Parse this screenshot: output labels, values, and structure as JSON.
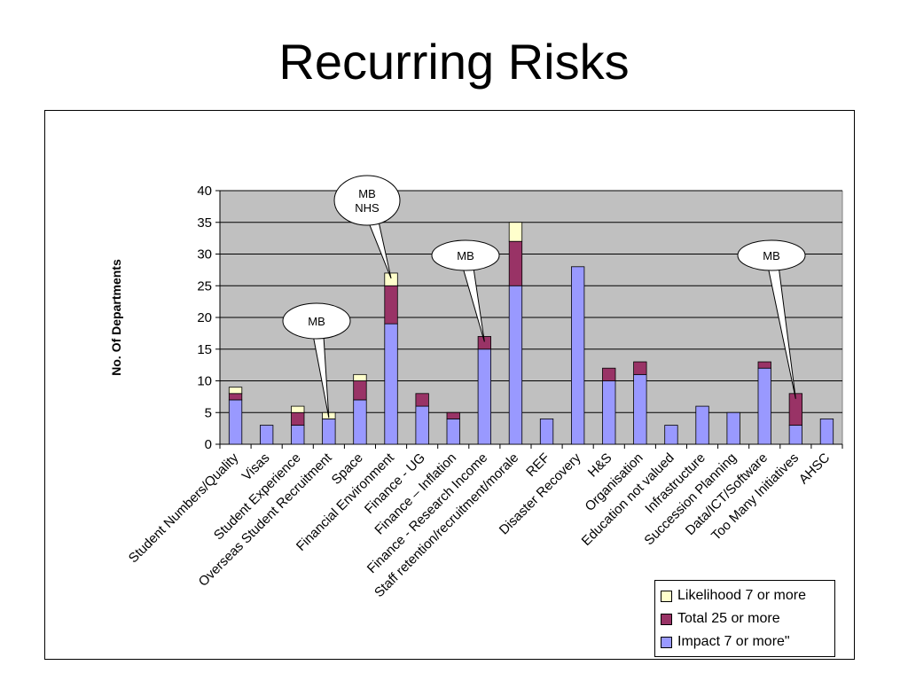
{
  "slide": {
    "title": "Recurring Risks"
  },
  "chart_data": {
    "type": "bar",
    "stacked": true,
    "title": "",
    "xlabel": "",
    "ylabel": "No. Of Departments",
    "ylim": [
      0,
      40
    ],
    "yticks": [
      0,
      5,
      10,
      15,
      20,
      25,
      30,
      35,
      40
    ],
    "grid": true,
    "legend_position": "bottom-right",
    "categories": [
      "Student Numbers/Quality",
      "Visas",
      "Student Experience",
      "Overseas Student Recruitment",
      "Space",
      "Financial Environment",
      "Finance - UG",
      "Finance – Inflation",
      "Finance - Research Income",
      "Staff retention/recruitment/morale",
      "REF",
      "Disaster Recovery",
      "H&S",
      "Organisation",
      "Education not valued",
      "Infrastructure",
      "Succession Planning",
      "Data/ICT/Software",
      "Too Many Initiatives",
      "AHSC"
    ],
    "series": [
      {
        "name": "Impact 7 or more\"",
        "color": "#9999FF",
        "values": [
          7,
          3,
          3,
          4,
          7,
          19,
          6,
          4,
          15,
          25,
          4,
          28,
          10,
          11,
          3,
          6,
          5,
          12,
          3,
          4
        ]
      },
      {
        "name": "Total 25 or more",
        "color": "#993366",
        "values": [
          1,
          0,
          2,
          0,
          3,
          6,
          2,
          1,
          2,
          7,
          0,
          0,
          2,
          2,
          0,
          0,
          0,
          1,
          5,
          0
        ]
      },
      {
        "name": "Likelihood 7 or more",
        "color": "#FFFFCC",
        "values": [
          1,
          0,
          1,
          1,
          1,
          2,
          0,
          0,
          0,
          3,
          0,
          0,
          0,
          0,
          0,
          0,
          0,
          0,
          0,
          0
        ]
      }
    ],
    "legend_order": [
      "Likelihood 7 or more",
      "Total 25 or more",
      "Impact 7 or more\""
    ],
    "plot_background": "#C0C0C0",
    "annotations": [
      {
        "lines": [
          "MB"
        ],
        "category": "Overseas Student Recruitment"
      },
      {
        "lines": [
          "MB",
          "NHS"
        ],
        "category": "Financial Environment"
      },
      {
        "lines": [
          "MB"
        ],
        "category": "Finance - Research Income"
      },
      {
        "lines": [
          "MB"
        ],
        "category": "Too Many Initiatives"
      }
    ]
  }
}
